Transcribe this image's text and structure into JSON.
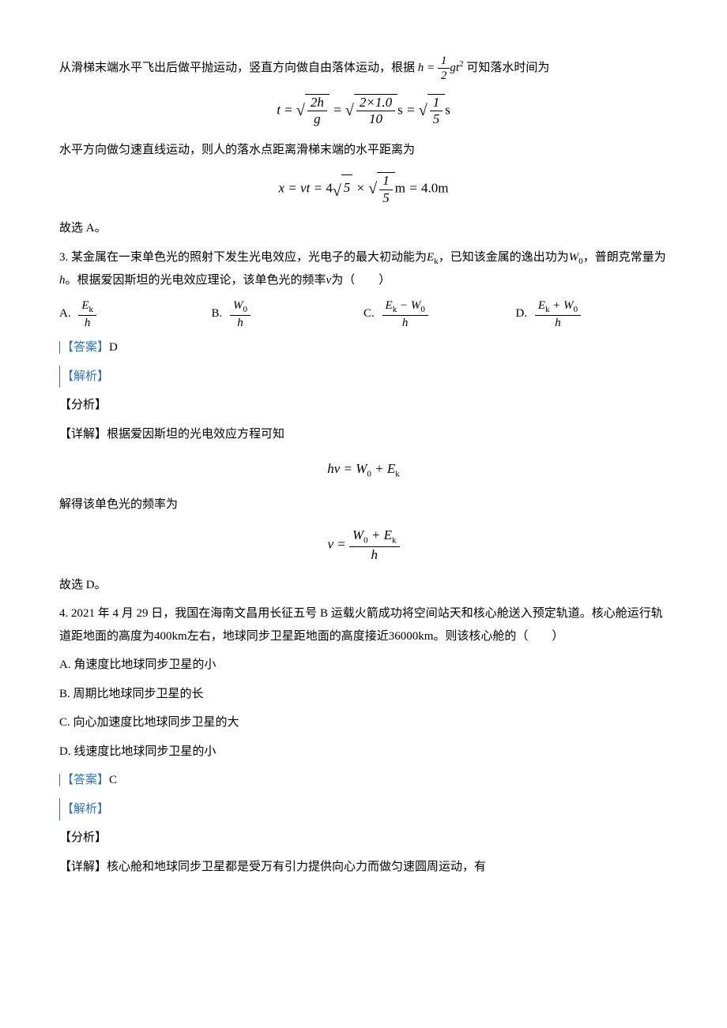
{
  "p1_prefix": "从滑梯末端水平飞出后做平抛运动，竖直方向做自由落体运动，根据",
  "p1_eq_lhs": "h",
  "p1_eq_num": "1",
  "p1_eq_den": "2",
  "p1_eq_rhs": "gt",
  "p1_eq_exp": "2",
  "p1_suffix": "可知落水时间为",
  "formula1": {
    "lhs": "t",
    "rad1_num": "2h",
    "rad1_den": "g",
    "rad2_num": "2×1.0",
    "rad2_den": "10",
    "unit_s": "s",
    "rad3_num": "1",
    "rad3_den": "5"
  },
  "p2": "水平方向做匀速直线运动，则人的落水点距离滑梯末端的水平距离为",
  "formula2": {
    "lhs": "x",
    "eq1": "vt",
    "coef": "4",
    "sqrt5": "5",
    "rad_num": "1",
    "rad_den": "5",
    "unit_m": "m",
    "result": "4.0m"
  },
  "p3": "故选 A。",
  "q3": {
    "num": "3. ",
    "text_a": "某金属在一束单色光的照射下发生光电效应，光电子的最大初动能为",
    "Ek": "E",
    "Ek_sub": "k",
    "text_b": "，已知该金属的逸出功为",
    "W0": "W",
    "W0_sub": "0",
    "text_c": "，普朗克常量为",
    "h": "h",
    "text_d": "。根据爱因斯坦的光电效应理论，该单色光的频率",
    "nu": "ν",
    "text_e": "为（　　）"
  },
  "q3_opts": {
    "A": {
      "label": "A.",
      "num": "E",
      "num_sub": "k",
      "den": "h"
    },
    "B": {
      "label": "B.",
      "num": "W",
      "num_sub": "0",
      "den": "h"
    },
    "C": {
      "label": "C.",
      "num1": "E",
      "num1_sub": "k",
      "minus": " − ",
      "num2": "W",
      "num2_sub": "0",
      "den": "h"
    },
    "D": {
      "label": "D.",
      "num1": "E",
      "num1_sub": "k",
      "plus": " + ",
      "num2": "W",
      "num2_sub": "0",
      "den": "h"
    }
  },
  "ans3_label": "【答案】",
  "ans3_val": "D",
  "jiexi": "【解析】",
  "fenxi": "【分析】",
  "xiangjie3": "【详解】根据爱因斯坦的光电效应方程可知",
  "formula3": {
    "lhs_h": "h",
    "lhs_nu": "ν",
    "W0": "W",
    "W0_sub": "0",
    "plus": " + ",
    "Ek": "E",
    "Ek_sub": "k"
  },
  "p_jiede": "解得该单色光的频率为",
  "formula4": {
    "nu": "ν",
    "W0": "W",
    "W0_sub": "0",
    "plus": " + ",
    "Ek": "E",
    "Ek_sub": "k",
    "den": "h"
  },
  "p_guxuanD": "故选 D。",
  "q4": {
    "num": "4. ",
    "text_a": "2021 年 4 月 29 日，我国在海南文昌用长征五号 B 运载火箭成功将空间站天和核心舱送入预定轨道。核心舱运行轨道距地面的高度为",
    "h1": "400km",
    "text_b": "左右，地球同步卫星距地面的高度接近",
    "h2": "36000km",
    "text_c": "。则该核心舱的（　　）"
  },
  "q4_opts": {
    "A": "A.  角速度比地球同步卫星的小",
    "B": "B.  周期比地球同步卫星的长",
    "C": "C.  向心加速度比地球同步卫星的大",
    "D": "D.  线速度比地球同步卫星的小"
  },
  "ans4_label": "【答案】",
  "ans4_val": "C",
  "xiangjie4": "【详解】核心舱和地球同步卫星都是受万有引力提供向心力而做匀速圆周运动，有",
  "colors": {
    "text": "#000000",
    "blue": "#2e74b5",
    "background": "#ffffff"
  }
}
